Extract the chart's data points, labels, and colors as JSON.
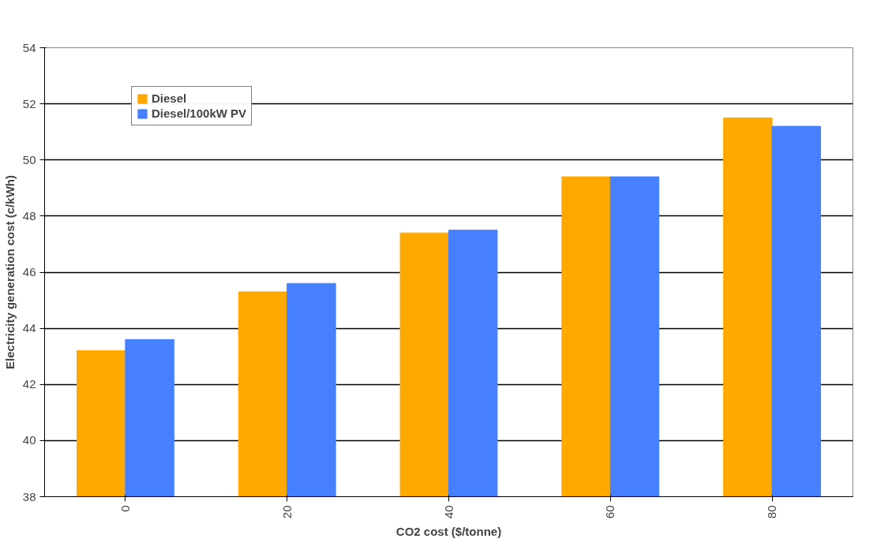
{
  "chart_data": {
    "type": "bar",
    "xlabel": "CO2 cost ($/tonne)",
    "ylabel": "Electricity generation cost (c/kWh)",
    "categories": [
      "0",
      "20",
      "40",
      "60",
      "80"
    ],
    "series": [
      {
        "name": "Diesel",
        "color": "#ffa800",
        "values": [
          43.2,
          45.3,
          47.4,
          49.4,
          51.5
        ]
      },
      {
        "name": "Diesel/100kW PV",
        "color": "#4680ff",
        "values": [
          43.6,
          45.6,
          47.5,
          49.4,
          51.2
        ]
      }
    ],
    "ylim": [
      38,
      54
    ],
    "yticks": [
      38,
      40,
      42,
      44,
      46,
      48,
      50,
      52,
      54
    ],
    "grid": "y",
    "legend": "top left"
  }
}
